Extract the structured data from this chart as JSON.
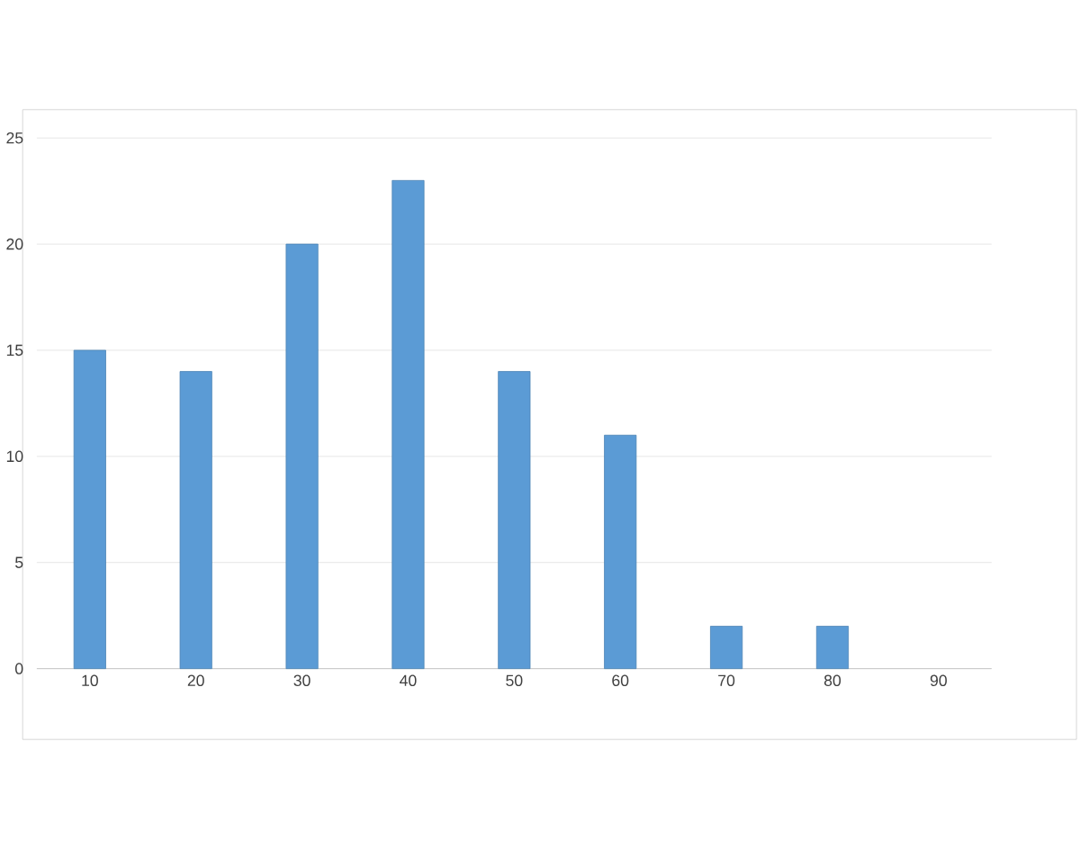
{
  "chart_data": {
    "type": "bar",
    "categories": [
      "10",
      "20",
      "30",
      "40",
      "50",
      "60",
      "70",
      "80",
      "90"
    ],
    "values": [
      15,
      14,
      20,
      23,
      14,
      11,
      2,
      2,
      null
    ],
    "color": "#5b9bd5",
    "ylim": [
      0,
      25
    ],
    "yticks": [
      0,
      5,
      10,
      15,
      20,
      25
    ],
    "grid": "y"
  }
}
